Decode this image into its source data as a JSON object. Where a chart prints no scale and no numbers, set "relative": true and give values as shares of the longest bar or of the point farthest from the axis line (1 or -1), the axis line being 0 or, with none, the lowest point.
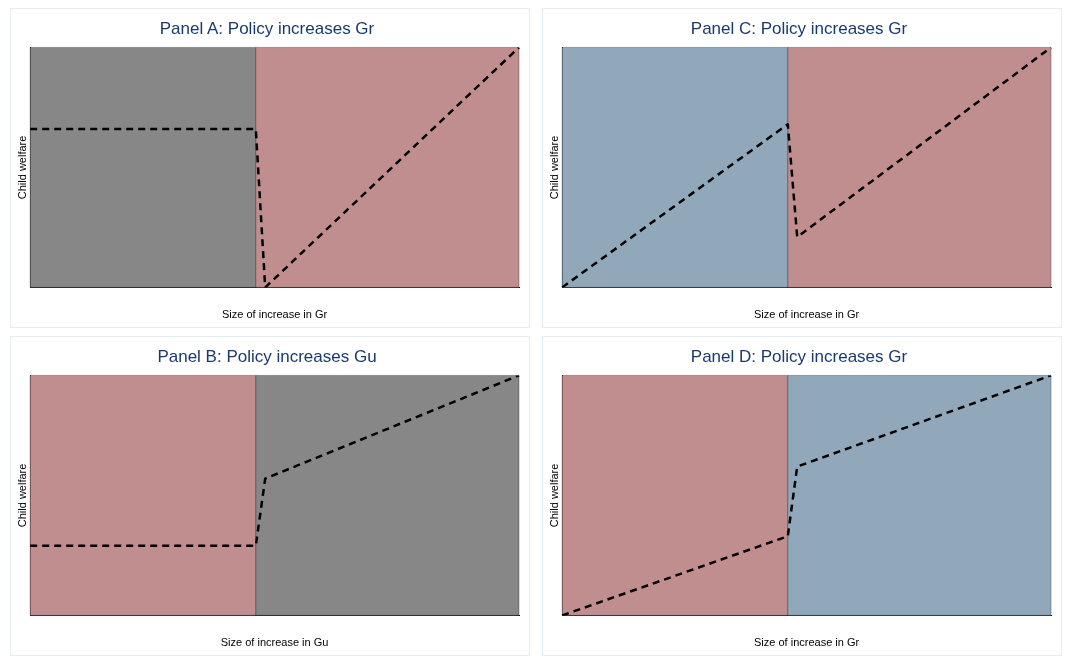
{
  "chart_data": [
    {
      "type": "line",
      "title": "Panel A: Policy increases Gr",
      "xlabel": "Size of increase in Gr",
      "ylabel": "Child welfare",
      "relative": true,
      "grid": false,
      "legend": false,
      "marker": "none",
      "line_style": "dashed",
      "categories": [
        null,
        null,
        null,
        null,
        null,
        null,
        null,
        null,
        null,
        null,
        null,
        null,
        null,
        null,
        null,
        null,
        null,
        null,
        null,
        null,
        null,
        null,
        null,
        null,
        null,
        null,
        null,
        null,
        null,
        null,
        null,
        null,
        null,
        null,
        null,
        null,
        null,
        null,
        null,
        null,
        null,
        null,
        null,
        null,
        null,
        null,
        null,
        null,
        null,
        null,
        null,
        null,
        null
      ],
      "series": [
        {
          "color": "#000000",
          "values": [
            0.66,
            null,
            null,
            null,
            null,
            null,
            null,
            null,
            null,
            null,
            null,
            null,
            null,
            null,
            null,
            null,
            null,
            null,
            null,
            null,
            null,
            null,
            null,
            null,
            0.66,
            0,
            null,
            null,
            null,
            null,
            null,
            null,
            null,
            null,
            null,
            null,
            null,
            null,
            null,
            null,
            null,
            null,
            null,
            null,
            null,
            null,
            null,
            null,
            null,
            null,
            null,
            null,
            1
          ]
        }
      ]
    },
    {
      "type": "line",
      "title": "Panel C: Policy increases Gr",
      "xlabel": "Size of increase in Gr",
      "ylabel": "Child welfare",
      "relative": true,
      "grid": false,
      "legend": false,
      "marker": "none",
      "line_style": "dashed",
      "categories": [
        null,
        null,
        null,
        null,
        null,
        null,
        null,
        null,
        null,
        null,
        null,
        null,
        null,
        null,
        null,
        null,
        null,
        null,
        null,
        null,
        null,
        null,
        null,
        null,
        null,
        null,
        null,
        null,
        null,
        null,
        null,
        null,
        null,
        null,
        null,
        null,
        null,
        null,
        null,
        null,
        null,
        null,
        null,
        null,
        null,
        null,
        null,
        null,
        null,
        null,
        null,
        null,
        null
      ],
      "series": [
        {
          "color": "#000000",
          "values": [
            0,
            null,
            null,
            null,
            null,
            null,
            null,
            null,
            null,
            null,
            null,
            null,
            null,
            null,
            null,
            null,
            null,
            null,
            null,
            null,
            null,
            null,
            null,
            null,
            0.68,
            0.21,
            null,
            null,
            null,
            null,
            null,
            null,
            null,
            null,
            null,
            null,
            null,
            null,
            null,
            null,
            null,
            null,
            null,
            null,
            null,
            null,
            null,
            null,
            null,
            null,
            null,
            null,
            1
          ]
        }
      ]
    },
    {
      "type": "line",
      "title": "Panel B: Policy increases Gu",
      "xlabel": "Size of increase in Gu",
      "ylabel": "Child welfare",
      "relative": true,
      "grid": false,
      "legend": false,
      "marker": "none",
      "line_style": "dashed",
      "categories": [
        null,
        null,
        null,
        null,
        null,
        null,
        null,
        null,
        null,
        null,
        null,
        null,
        null,
        null,
        null,
        null,
        null,
        null,
        null,
        null,
        null,
        null,
        null,
        null,
        null,
        null,
        null,
        null,
        null,
        null,
        null,
        null,
        null,
        null,
        null,
        null,
        null,
        null,
        null,
        null,
        null,
        null,
        null,
        null,
        null,
        null,
        null,
        null,
        null,
        null,
        null,
        null,
        null
      ],
      "series": [
        {
          "color": "#000000",
          "values": [
            0.29,
            null,
            null,
            null,
            null,
            null,
            null,
            null,
            null,
            null,
            null,
            null,
            null,
            null,
            null,
            null,
            null,
            null,
            null,
            null,
            null,
            null,
            null,
            null,
            0.29,
            0.57,
            null,
            null,
            null,
            null,
            null,
            null,
            null,
            null,
            null,
            null,
            null,
            null,
            null,
            null,
            null,
            null,
            null,
            null,
            null,
            null,
            null,
            null,
            null,
            null,
            null,
            null,
            1
          ]
        }
      ]
    },
    {
      "type": "line",
      "title": "Panel D: Policy increases Gr",
      "xlabel": "Size of increase in Gr",
      "ylabel": "Child welfare",
      "relative": true,
      "grid": false,
      "legend": false,
      "marker": "none",
      "line_style": "dashed",
      "categories": [
        null,
        null,
        null,
        null,
        null,
        null,
        null,
        null,
        null,
        null,
        null,
        null,
        null,
        null,
        null,
        null,
        null,
        null,
        null,
        null,
        null,
        null,
        null,
        null,
        null,
        null,
        null,
        null,
        null,
        null,
        null,
        null,
        null,
        null,
        null,
        null,
        null,
        null,
        null,
        null,
        null,
        null,
        null,
        null,
        null,
        null,
        null,
        null,
        null,
        null,
        null,
        null,
        null
      ],
      "series": [
        {
          "color": "#000000",
          "values": [
            0,
            null,
            null,
            null,
            null,
            null,
            null,
            null,
            null,
            null,
            null,
            null,
            null,
            null,
            null,
            null,
            null,
            null,
            null,
            null,
            null,
            null,
            null,
            null,
            0.33,
            0.62,
            null,
            null,
            null,
            null,
            null,
            null,
            null,
            null,
            null,
            null,
            null,
            null,
            null,
            null,
            null,
            null,
            null,
            null,
            null,
            null,
            null,
            null,
            null,
            null,
            null,
            null,
            1
          ]
        }
      ]
    }
  ]
}
